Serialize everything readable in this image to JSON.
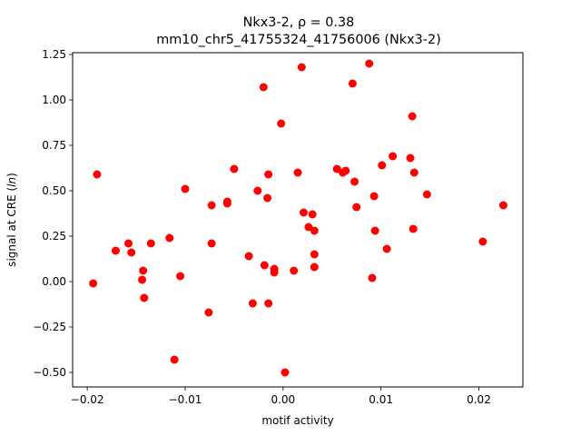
{
  "chart_data": {
    "type": "scatter",
    "title_line1": "Nkx3-2, ρ = 0.38",
    "title_line2": "mm10_chr5_41755324_41756006 (Nkx3-2)",
    "xlabel": "motif activity",
    "ylabel": "signal at CRE (ln)",
    "xlim": [
      -0.0215,
      0.0245
    ],
    "ylim": [
      -0.58,
      1.26
    ],
    "grid": false,
    "marker_color": "#ff0000",
    "xticks": [
      {
        "value": -0.02,
        "label": "−0.02"
      },
      {
        "value": -0.01,
        "label": "−0.01"
      },
      {
        "value": 0.0,
        "label": "0.00"
      },
      {
        "value": 0.01,
        "label": "0.01"
      },
      {
        "value": 0.02,
        "label": "0.02"
      }
    ],
    "yticks": [
      {
        "value": 1.25,
        "label": "1.25"
      },
      {
        "value": 1.0,
        "label": "1.00"
      },
      {
        "value": 0.75,
        "label": "0.75"
      },
      {
        "value": 0.5,
        "label": "0.50"
      },
      {
        "value": 0.25,
        "label": "0.25"
      },
      {
        "value": 0.0,
        "label": "0.00"
      },
      {
        "value": -0.25,
        "label": "−0.25"
      },
      {
        "value": -0.5,
        "label": "−0.50"
      }
    ],
    "points": [
      {
        "x": -0.0194,
        "y": -0.01
      },
      {
        "x": -0.019,
        "y": 0.59
      },
      {
        "x": -0.0171,
        "y": 0.17
      },
      {
        "x": -0.0158,
        "y": 0.21
      },
      {
        "x": -0.0155,
        "y": 0.16
      },
      {
        "x": -0.0143,
        "y": 0.06
      },
      {
        "x": -0.0144,
        "y": 0.01
      },
      {
        "x": -0.0142,
        "y": -0.09
      },
      {
        "x": -0.0135,
        "y": 0.21
      },
      {
        "x": -0.0116,
        "y": 0.24
      },
      {
        "x": -0.0111,
        "y": -0.43
      },
      {
        "x": -0.0105,
        "y": 0.03
      },
      {
        "x": -0.01,
        "y": 0.51
      },
      {
        "x": -0.0076,
        "y": -0.17
      },
      {
        "x": -0.0073,
        "y": 0.42
      },
      {
        "x": -0.0073,
        "y": 0.21
      },
      {
        "x": -0.0057,
        "y": 0.43
      },
      {
        "x": -0.0057,
        "y": 0.44
      },
      {
        "x": -0.005,
        "y": 0.62
      },
      {
        "x": -0.0035,
        "y": 0.14
      },
      {
        "x": -0.0031,
        "y": -0.12
      },
      {
        "x": -0.0026,
        "y": 0.5
      },
      {
        "x": -0.002,
        "y": 1.07
      },
      {
        "x": -0.0019,
        "y": 0.09
      },
      {
        "x": -0.0016,
        "y": 0.46
      },
      {
        "x": -0.0015,
        "y": 0.59
      },
      {
        "x": -0.0015,
        "y": -0.12
      },
      {
        "x": -0.0009,
        "y": 0.07
      },
      {
        "x": -0.0009,
        "y": 0.05
      },
      {
        "x": -0.0002,
        "y": 0.87
      },
      {
        "x": 0.0002,
        "y": -0.5
      },
      {
        "x": 0.0011,
        "y": 0.06
      },
      {
        "x": 0.0015,
        "y": 0.6
      },
      {
        "x": 0.0019,
        "y": 1.18
      },
      {
        "x": 0.0021,
        "y": 0.38
      },
      {
        "x": 0.0026,
        "y": 0.3
      },
      {
        "x": 0.003,
        "y": 0.37
      },
      {
        "x": 0.0032,
        "y": 0.28
      },
      {
        "x": 0.0032,
        "y": 0.15
      },
      {
        "x": 0.0032,
        "y": 0.08
      },
      {
        "x": 0.0055,
        "y": 0.62
      },
      {
        "x": 0.0061,
        "y": 0.6
      },
      {
        "x": 0.0064,
        "y": 0.61
      },
      {
        "x": 0.0071,
        "y": 1.09
      },
      {
        "x": 0.0073,
        "y": 0.55
      },
      {
        "x": 0.0075,
        "y": 0.41
      },
      {
        "x": 0.0088,
        "y": 1.2
      },
      {
        "x": 0.0091,
        "y": 0.02
      },
      {
        "x": 0.0093,
        "y": 0.47
      },
      {
        "x": 0.0094,
        "y": 0.28
      },
      {
        "x": 0.0101,
        "y": 0.64
      },
      {
        "x": 0.0106,
        "y": 0.18
      },
      {
        "x": 0.0112,
        "y": 0.69
      },
      {
        "x": 0.013,
        "y": 0.68
      },
      {
        "x": 0.0132,
        "y": 0.91
      },
      {
        "x": 0.0133,
        "y": 0.29
      },
      {
        "x": 0.0134,
        "y": 0.6
      },
      {
        "x": 0.0147,
        "y": 0.48
      },
      {
        "x": 0.0204,
        "y": 0.22
      },
      {
        "x": 0.0225,
        "y": 0.42
      }
    ]
  }
}
